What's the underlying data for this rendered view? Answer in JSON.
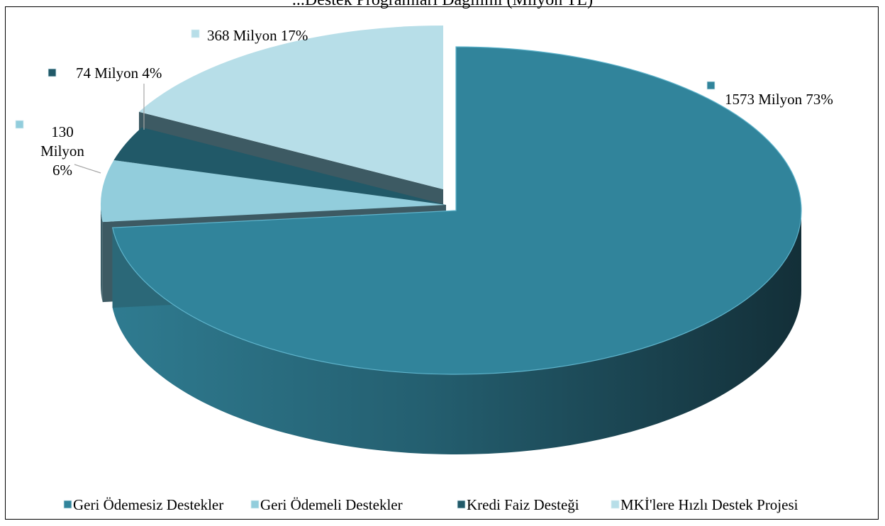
{
  "chart_data": {
    "type": "pie",
    "title": "...Destek Programları Dağılımı (Milyon TL)",
    "categories": [
      "Geri Ödemesiz Destekler",
      "Geri Ödemeli Destekler",
      "Kredi Faiz Desteği",
      "MKİ'lere Hızlı Destek Projesi"
    ],
    "values": [
      1573,
      130,
      74,
      368
    ],
    "percentages": [
      73,
      6,
      4,
      17
    ],
    "data_labels": [
      "1573 Milyon 73%",
      "130 Milyon 6%",
      "74 Milyon 4%",
      "368 Milyon 17%"
    ],
    "legend_position": "bottom",
    "colors": [
      "#31849b",
      "#92cddc",
      "#215968",
      "#b7dee8"
    ],
    "three_d": true,
    "exploded": true
  }
}
